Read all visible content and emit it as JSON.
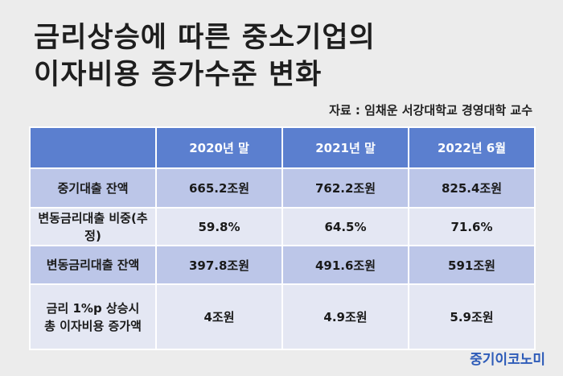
{
  "title": {
    "line1": "금리상승에 따른 중소기업의",
    "line2": "이자비용 증가수준 변화"
  },
  "source": "자료 : 임채운 서강대학교 경영대학 교수",
  "table": {
    "headers": [
      "",
      "2020년 말",
      "2021년 말",
      "2022년 6월"
    ],
    "rows": [
      {
        "label": "중기대출 잔액",
        "values": [
          "665.2조원",
          "762.2조원",
          "825.4조원"
        ]
      },
      {
        "label": "변동금리대출 비중(추정)",
        "values": [
          "59.8%",
          "64.5%",
          "71.6%"
        ]
      },
      {
        "label": "변동금리대출 잔액",
        "values": [
          "397.8조원",
          "491.6조원",
          "591조원"
        ]
      },
      {
        "label_line1": "금리 1%p 상승시",
        "label_line2": "총 이자비용 증가액",
        "values": [
          "4조원",
          "4.9조원",
          "5.9조원"
        ]
      }
    ]
  },
  "brand": "중기이코노미",
  "colors": {
    "header": "#5b7fcf",
    "row_shade": "#bcc6e8",
    "row_plain": "#e4e7f3",
    "brand": "#2d5bb8"
  }
}
